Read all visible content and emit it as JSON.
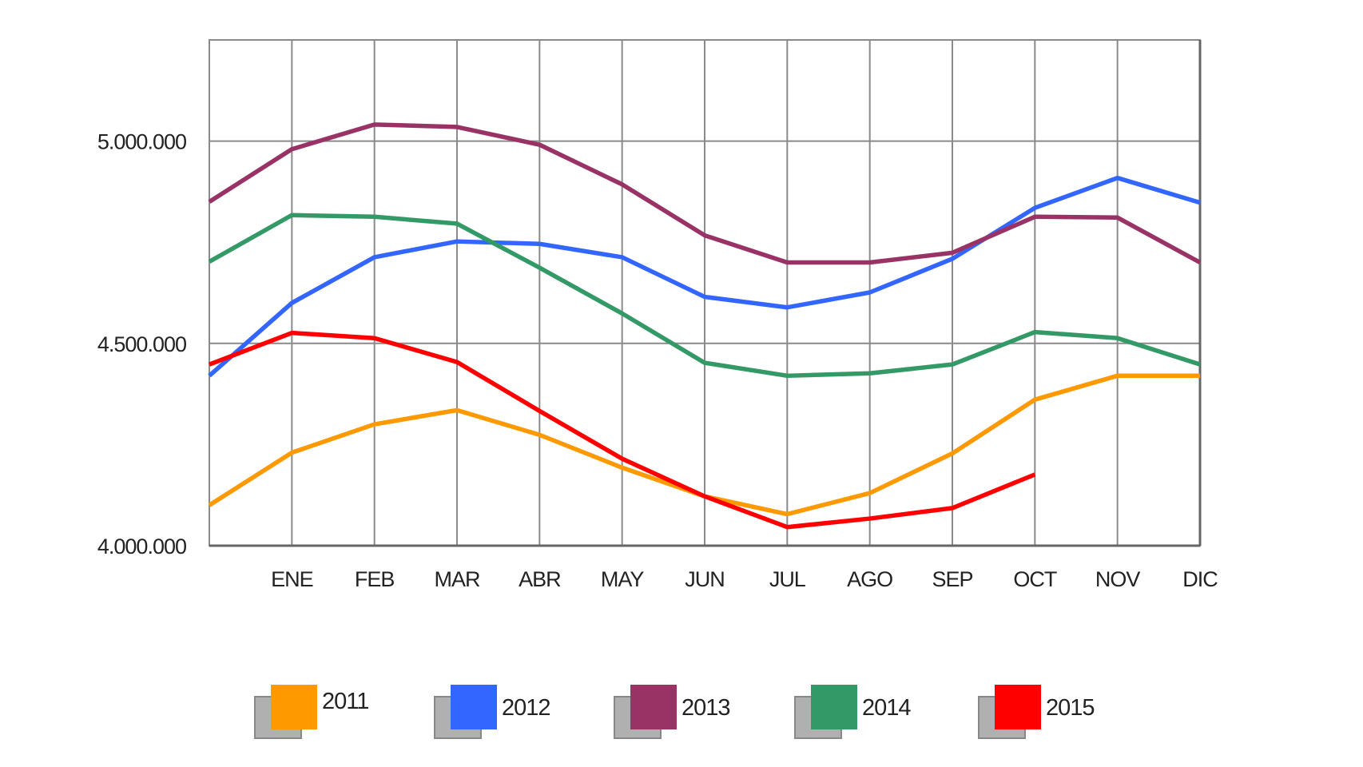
{
  "chart_data": {
    "type": "line",
    "title": "",
    "xlabel": "",
    "ylabel": "",
    "categories": [
      "",
      "ENE",
      "FEB",
      "MAR",
      "ABR",
      "MAY",
      "JUN",
      "JUL",
      "AGO",
      "SEP",
      "OCT",
      "NOV",
      "DIC"
    ],
    "ylim": [
      4000000,
      5250000
    ],
    "yticks": [
      4000000,
      4500000,
      5000000
    ],
    "ytick_labels": [
      "4.000.000",
      "4.500.000",
      "5.000.000"
    ],
    "grid": true,
    "legend_position": "bottom",
    "series": [
      {
        "name": "2011",
        "color": "#FF9900",
        "values": [
          4100000,
          4230000,
          4300000,
          4335000,
          4274000,
          4193000,
          4122000,
          4078000,
          4130000,
          4228000,
          4361000,
          4420000,
          4420000
        ]
      },
      {
        "name": "2012",
        "color": "#3366FF",
        "values": [
          4420000,
          4600000,
          4713000,
          4752000,
          4746000,
          4713000,
          4615000,
          4589000,
          4626000,
          4709000,
          4835000,
          4909000,
          4848000
        ]
      },
      {
        "name": "2013",
        "color": "#993366",
        "values": [
          4850000,
          4980000,
          5041000,
          5035000,
          4991000,
          4893000,
          4767000,
          4700000,
          4700000,
          4724000,
          4813000,
          4811000,
          4700000
        ]
      },
      {
        "name": "2014",
        "color": "#339966",
        "values": [
          4702000,
          4817000,
          4813000,
          4796000,
          4687000,
          4574000,
          4452000,
          4420000,
          4426000,
          4448000,
          4528000,
          4513000,
          4448000
        ]
      },
      {
        "name": "2015",
        "color": "#FF0000",
        "values": [
          4448000,
          4526000,
          4513000,
          4454000,
          4333000,
          4215000,
          4122000,
          4046000,
          4067000,
          4093000,
          4176000,
          null,
          null
        ]
      }
    ]
  }
}
